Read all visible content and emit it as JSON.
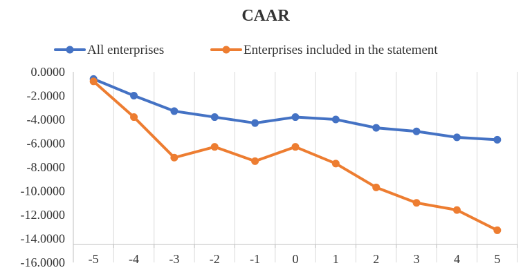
{
  "chart_data": {
    "type": "line",
    "title": "CAAR",
    "xlabel": "",
    "ylabel": "",
    "categories": [
      "-5",
      "-4",
      "-3",
      "-2",
      "-1",
      "0",
      "1",
      "2",
      "3",
      "4",
      "5"
    ],
    "ylim": [
      -16,
      0
    ],
    "y_ticks": [
      0,
      -2,
      -4,
      -6,
      -8,
      -10,
      -12,
      -14,
      -16
    ],
    "y_tick_labels": [
      "0.0000",
      "-2.0000",
      "-4.0000",
      "-6.0000",
      "-8.0000",
      "-10.0000",
      "-12.0000",
      "-14.0000",
      "-16.0000"
    ],
    "grid": "vertical",
    "legend_position": "top",
    "series": [
      {
        "name": "All enterprises",
        "color": "#4472C4",
        "values": [
          -0.6,
          -2.0,
          -3.3,
          -3.8,
          -4.3,
          -3.8,
          -4.0,
          -4.7,
          -5.0,
          -5.5,
          -5.7
        ]
      },
      {
        "name": "Enterprises included in the statement",
        "color": "#ED7D31",
        "values": [
          -0.8,
          -3.8,
          -7.2,
          -6.3,
          -7.5,
          -6.3,
          -7.7,
          -9.7,
          -11.0,
          -11.6,
          -13.3
        ]
      }
    ]
  }
}
